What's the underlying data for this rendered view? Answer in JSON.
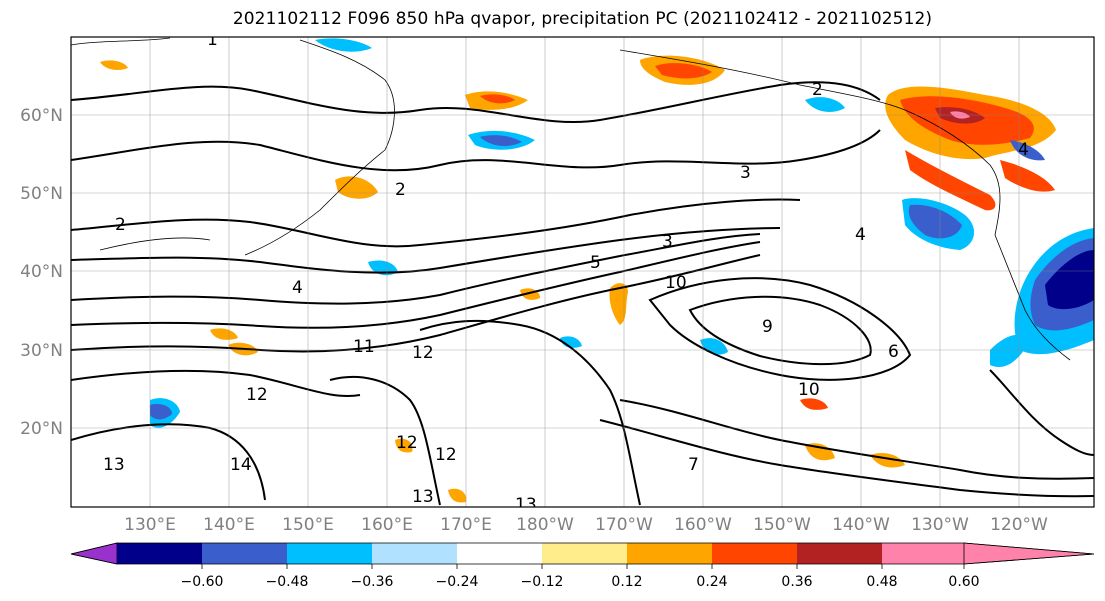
{
  "title": "2021102112 F096 850 hPa qvapor, precipitation PC (2021102412 - 2021102512)",
  "lat_labels": [
    "20°N",
    "30°N",
    "40°N",
    "50°N",
    "60°N"
  ],
  "lon_labels": [
    "130°E",
    "140°E",
    "150°E",
    "160°E",
    "170°E",
    "180°W",
    "170°W",
    "160°W",
    "150°W",
    "140°W",
    "130°W",
    "120°W"
  ],
  "colorbar": {
    "ticks": [
      "−0.60",
      "−0.48",
      "−0.36",
      "−0.24",
      "−0.12",
      "0.12",
      "0.24",
      "0.36",
      "0.48",
      "0.60"
    ],
    "colors": [
      "#9932CC",
      "#00008B",
      "#3A5FCD",
      "#00BFFF",
      "#B0E2FF",
      "#FFFFFF",
      "#FFEC8B",
      "#FFA500",
      "#FF4500",
      "#B22222",
      "#FF82AB"
    ]
  },
  "contour_labels": [
    "1",
    "2",
    "2",
    "2",
    "3",
    "3",
    "4",
    "4",
    "4",
    "5",
    "6",
    "7",
    "9",
    "10",
    "10",
    "11",
    "12",
    "12",
    "12",
    "12",
    "13",
    "13",
    "13",
    "14"
  ]
}
